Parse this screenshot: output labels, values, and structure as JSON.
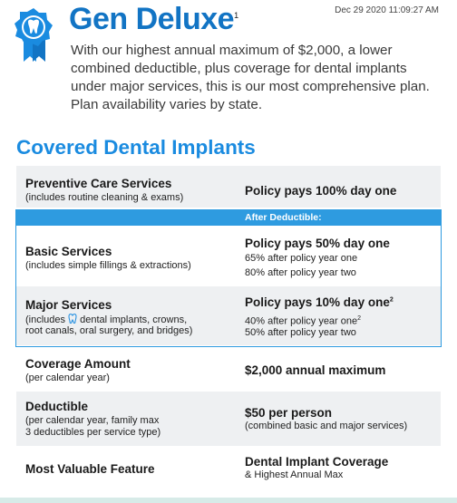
{
  "timestamp": "Dec 29 2020 11:09:27 AM",
  "header": {
    "title": "Gen Deluxe",
    "title_sup": "1",
    "description": "With our highest annual maximum of $2,000, a lower combined deductible, plus coverage for dental implants under major services, this is our most comprehensive plan. Plan availability varies by state."
  },
  "section_title": "Covered Dental Implants",
  "band": "After Deductible:",
  "rows": [
    {
      "label": "Preventive Care Services",
      "note": [
        "(includes routine cleaning & exams)"
      ],
      "value": "Policy pays 100% day one"
    },
    {
      "label": "Basic Services",
      "note": [
        "(includes simple fillings & extractions)"
      ],
      "value": "Policy pays 50% day one",
      "details": [
        "65% after policy year one",
        "80% after policy year two"
      ]
    },
    {
      "label": "Major Services",
      "note_before": "(includes ",
      "note_after": " dental implants, crowns,",
      "note": [
        "root canals, oral surgery, and bridges)"
      ],
      "value": "Policy pays 10% day one",
      "value_sup": "2",
      "details": [
        "40% after policy year one",
        "50% after policy year two"
      ],
      "detail_sup": "2"
    },
    {
      "label": "Coverage Amount",
      "note": [
        "(per calendar year)"
      ],
      "value": "$2,000 annual maximum"
    },
    {
      "label": "Deductible",
      "note": [
        "(per calendar year, family max",
        "3 deductibles per service type)"
      ],
      "value": "$50 per person",
      "details": [
        "(combined basic and major services)"
      ]
    },
    {
      "label": "Most Valuable Feature",
      "value": "Dental Implant Coverage",
      "details": [
        "& Highest Annual Max"
      ]
    }
  ]
}
